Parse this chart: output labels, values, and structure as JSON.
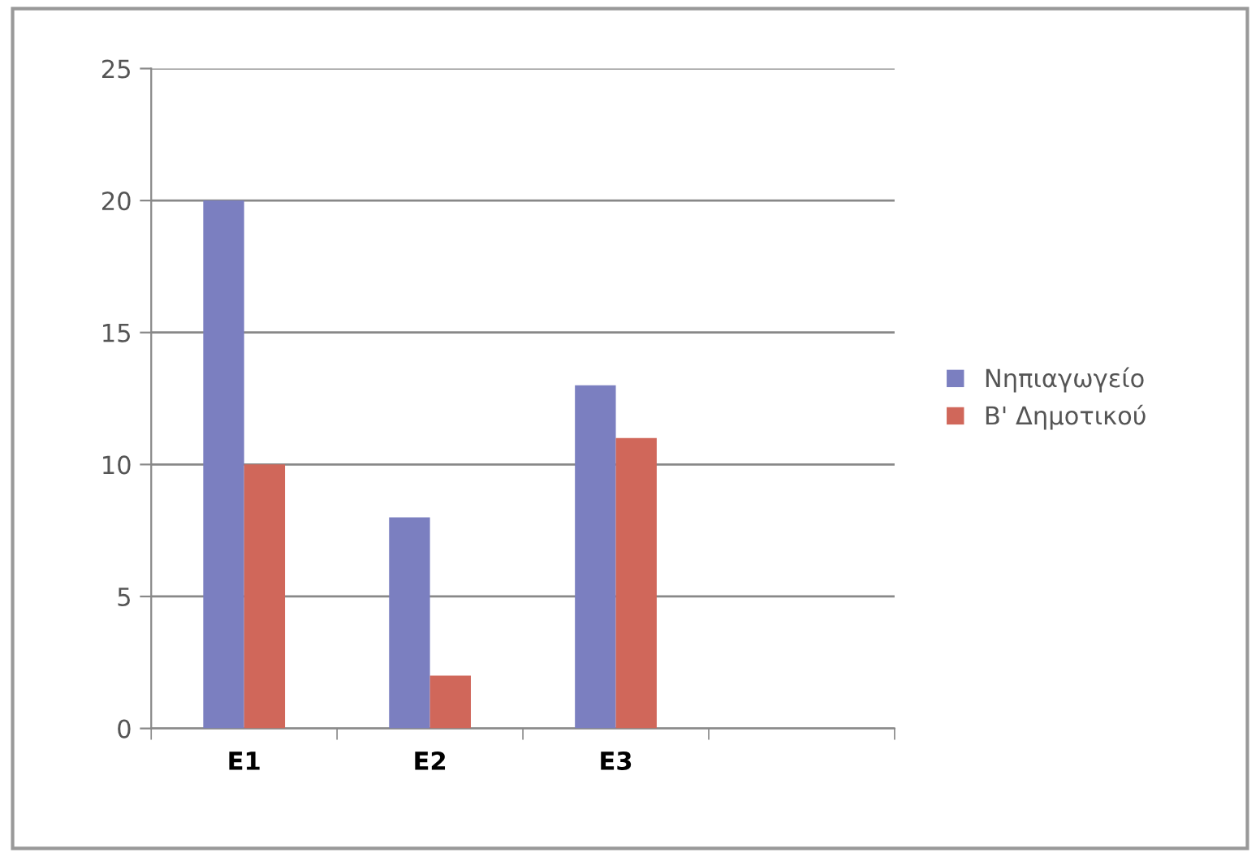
{
  "chart_data": {
    "type": "bar",
    "categories": [
      "E1",
      "E2",
      "E3",
      null
    ],
    "series": [
      {
        "name": "Νηπιαγωγείο",
        "color": "#7b7fc0",
        "values": [
          20,
          8,
          13,
          null
        ]
      },
      {
        "name": "Β' Δημοτικού",
        "color": "#d0675a",
        "values": [
          10,
          2,
          11,
          null
        ]
      }
    ],
    "ylim": [
      0,
      25
    ],
    "yticks": [
      0,
      5,
      10,
      15,
      20,
      25
    ],
    "grid": "y",
    "legend": "right"
  }
}
